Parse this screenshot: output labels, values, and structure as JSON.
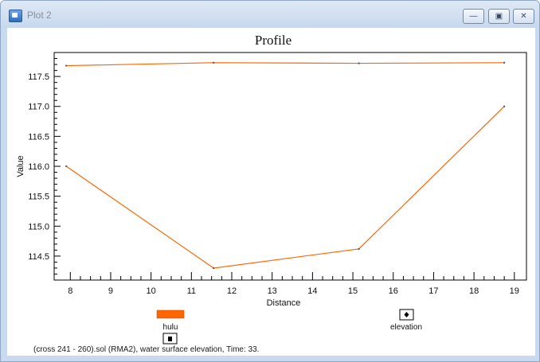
{
  "window": {
    "title": "Plot 2",
    "minimize_icon": "minimize-icon",
    "maximize_icon": "maximize-icon",
    "close_icon": "close-icon"
  },
  "chart_data": {
    "type": "line",
    "title": "Profile",
    "xlabel": "Distance",
    "ylabel": "Value",
    "xlim": [
      7.6,
      19.3
    ],
    "ylim": [
      114.1,
      117.9
    ],
    "xticks": [
      8,
      9,
      10,
      11,
      12,
      13,
      14,
      15,
      16,
      17,
      18,
      19
    ],
    "yticks": [
      114.5,
      115.0,
      115.5,
      116.0,
      116.5,
      117.0,
      117.5
    ],
    "ytick_labels": [
      "114.5",
      "115.0",
      "115.5",
      "116.0",
      "116.5",
      "117.0",
      "117.5"
    ],
    "grid": false,
    "series": [
      {
        "name": "hulu",
        "color": "#ff6600",
        "x": [
          7.9,
          11.55,
          15.15,
          18.75
        ],
        "y": [
          117.68,
          117.73,
          117.72,
          117.73
        ]
      },
      {
        "color": "#ff6600",
        "x": [
          7.9,
          11.55,
          15.15,
          18.75
        ],
        "y": [
          116.0,
          114.3,
          114.62,
          117.0
        ]
      }
    ],
    "legend": [
      {
        "label": "hulu",
        "color": "#ff6600"
      },
      {
        "label": "elevation"
      }
    ]
  },
  "caption": "(cross 241 - 260).sol (RMA2), water surface elevation, Time: 33."
}
